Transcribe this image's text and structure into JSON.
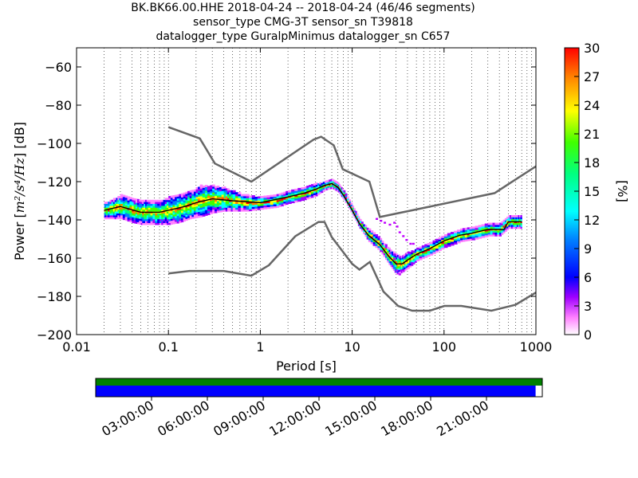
{
  "title": {
    "line1": "BK.BK66.00.HHE   2018-04-24 -- 2018-04-24  (46/46 segments)",
    "line2": "sensor_type CMG-3T sensor_sn T39818",
    "line3": "datalogger_type GuralpMinimus datalogger_sn C657"
  },
  "chart_data": {
    "type": "heatmap",
    "xlabel": "Period [s]",
    "ylabel": "Power [m²/s⁴/Hz] [dB]",
    "ylabel_parts": {
      "prefix": "Power [",
      "unit": "m²/s⁴/Hz",
      "suffix": "] [dB]"
    },
    "x_scale": "log",
    "xlim": [
      0.01,
      1000
    ],
    "ylim": [
      -200,
      -50
    ],
    "x_ticks": [
      0.01,
      0.1,
      1,
      10,
      100,
      1000
    ],
    "x_tick_labels": [
      "0.01",
      "0.1",
      "1",
      "10",
      "100",
      "1000"
    ],
    "y_ticks": [
      -200,
      -180,
      -160,
      -140,
      -120,
      -100,
      -80,
      -60
    ],
    "y_tick_labels": [
      "−200",
      "−180",
      "−160",
      "−140",
      "−120",
      "−100",
      "−80",
      "−60"
    ],
    "grid": "dotted vertical",
    "colorbar": {
      "label": "[%]",
      "range": [
        0,
        30
      ],
      "ticks": [
        "0",
        "3",
        "6",
        "9",
        "12",
        "15",
        "18",
        "21",
        "24",
        "27",
        "30"
      ]
    },
    "band": [
      {
        "x": 0.02,
        "y": -135,
        "w": 4
      },
      {
        "x": 0.025,
        "y": -134,
        "w": 5
      },
      {
        "x": 0.03,
        "y": -133,
        "w": 6
      },
      {
        "x": 0.04,
        "y": -135,
        "w": 6
      },
      {
        "x": 0.05,
        "y": -136,
        "w": 6
      },
      {
        "x": 0.06,
        "y": -136,
        "w": 6
      },
      {
        "x": 0.08,
        "y": -136,
        "w": 6
      },
      {
        "x": 0.1,
        "y": -135,
        "w": 7
      },
      {
        "x": 0.13,
        "y": -134,
        "w": 7
      },
      {
        "x": 0.17,
        "y": -132,
        "w": 7
      },
      {
        "x": 0.22,
        "y": -130,
        "w": 8
      },
      {
        "x": 0.3,
        "y": -129,
        "w": 7
      },
      {
        "x": 0.4,
        "y": -129,
        "w": 6
      },
      {
        "x": 0.5,
        "y": -130,
        "w": 5
      },
      {
        "x": 0.7,
        "y": -131,
        "w": 4
      },
      {
        "x": 1,
        "y": -131,
        "w": 3
      },
      {
        "x": 1.5,
        "y": -130,
        "w": 3
      },
      {
        "x": 2,
        "y": -128,
        "w": 3
      },
      {
        "x": 3,
        "y": -126,
        "w": 3
      },
      {
        "x": 4,
        "y": -124,
        "w": 3
      },
      {
        "x": 5,
        "y": -122,
        "w": 2
      },
      {
        "x": 6,
        "y": -121,
        "w": 2
      },
      {
        "x": 7,
        "y": -123,
        "w": 2
      },
      {
        "x": 8,
        "y": -127,
        "w": 2
      },
      {
        "x": 10,
        "y": -135,
        "w": 2
      },
      {
        "x": 12,
        "y": -142,
        "w": 2
      },
      {
        "x": 15,
        "y": -148,
        "w": 3
      },
      {
        "x": 20,
        "y": -153,
        "w": 3
      },
      {
        "x": 25,
        "y": -159,
        "w": 4
      },
      {
        "x": 30,
        "y": -163,
        "w": 5
      },
      {
        "x": 35,
        "y": -163,
        "w": 4
      },
      {
        "x": 40,
        "y": -161,
        "w": 4
      },
      {
        "x": 50,
        "y": -158,
        "w": 3
      },
      {
        "x": 70,
        "y": -155,
        "w": 3
      },
      {
        "x": 100,
        "y": -151,
        "w": 3
      },
      {
        "x": 150,
        "y": -148,
        "w": 3
      },
      {
        "x": 200,
        "y": -147,
        "w": 3
      },
      {
        "x": 300,
        "y": -145,
        "w": 3
      },
      {
        "x": 400,
        "y": -145,
        "w": 3
      },
      {
        "x": 500,
        "y": -141,
        "w": 3
      },
      {
        "x": 600,
        "y": -141,
        "w": 3
      },
      {
        "x": 700,
        "y": -141,
        "w": 3
      }
    ],
    "mode_line": [
      [
        0.02,
        -135
      ],
      [
        0.03,
        -133
      ],
      [
        0.05,
        -136
      ],
      [
        0.08,
        -136
      ],
      [
        0.1,
        -135
      ],
      [
        0.15,
        -133
      ],
      [
        0.2,
        -131
      ],
      [
        0.3,
        -129
      ],
      [
        0.5,
        -130
      ],
      [
        1,
        -131
      ],
      [
        2,
        -128
      ],
      [
        3,
        -126
      ],
      [
        4,
        -124
      ],
      [
        5,
        -122
      ],
      [
        6,
        -121
      ],
      [
        7,
        -123
      ],
      [
        8,
        -127
      ],
      [
        10,
        -135
      ],
      [
        12,
        -142
      ],
      [
        15,
        -148
      ],
      [
        20,
        -153
      ],
      [
        25,
        -159
      ],
      [
        30,
        -163
      ],
      [
        35,
        -163
      ],
      [
        40,
        -161
      ],
      [
        50,
        -158
      ],
      [
        70,
        -155
      ],
      [
        100,
        -151
      ],
      [
        150,
        -148
      ],
      [
        200,
        -147
      ],
      [
        300,
        -145
      ],
      [
        400,
        -145
      ],
      [
        450,
        -145
      ],
      [
        500,
        -141
      ],
      [
        700,
        -141
      ]
    ],
    "nhnm": [
      [
        0.1,
        -91.5
      ],
      [
        0.22,
        -97.4
      ],
      [
        0.32,
        -110.5
      ],
      [
        0.8,
        -120
      ],
      [
        3.8,
        -98
      ],
      [
        4.6,
        -96.5
      ],
      [
        6.3,
        -101
      ],
      [
        7.9,
        -113.5
      ],
      [
        15.4,
        -120
      ],
      [
        20,
        -138.5
      ],
      [
        354.8,
        -126
      ],
      [
        1000,
        -112
      ]
    ],
    "nlnm": [
      [
        0.1,
        -168
      ],
      [
        0.17,
        -166.7
      ],
      [
        0.4,
        -166.7
      ],
      [
        0.8,
        -169.2
      ],
      [
        1.24,
        -163.7
      ],
      [
        2.4,
        -148.6
      ],
      [
        4.3,
        -141.1
      ],
      [
        5,
        -141.1
      ],
      [
        6,
        -149
      ],
      [
        10,
        -163
      ],
      [
        12,
        -166
      ],
      [
        15.6,
        -162
      ],
      [
        21.9,
        -177.5
      ],
      [
        31.6,
        -185
      ],
      [
        45,
        -187.5
      ],
      [
        70,
        -187.5
      ],
      [
        101,
        -185
      ],
      [
        154,
        -185
      ],
      [
        328,
        -187.5
      ],
      [
        600,
        -184.4
      ],
      [
        1000,
        -178
      ]
    ],
    "scatter_outliers": [
      [
        18,
        -139
      ],
      [
        20,
        -140
      ],
      [
        22,
        -141
      ],
      [
        25,
        -142
      ],
      [
        28,
        -141
      ],
      [
        30,
        -143
      ],
      [
        32,
        -146
      ],
      [
        35,
        -148
      ],
      [
        38,
        -150
      ],
      [
        42,
        -152
      ],
      [
        45,
        -152
      ],
      [
        25,
        -157
      ],
      [
        28,
        -160
      ],
      [
        30,
        -166
      ],
      [
        32,
        -168
      ],
      [
        35,
        -166
      ]
    ]
  },
  "timeline": {
    "coverage_fraction": 0.985,
    "data_color": "#0000ff",
    "segment_color": "#008000",
    "tick_labels": [
      "03:00:00",
      "06:00:00",
      "09:00:00",
      "12:00:00",
      "15:00:00",
      "18:00:00",
      "21:00:00"
    ]
  }
}
